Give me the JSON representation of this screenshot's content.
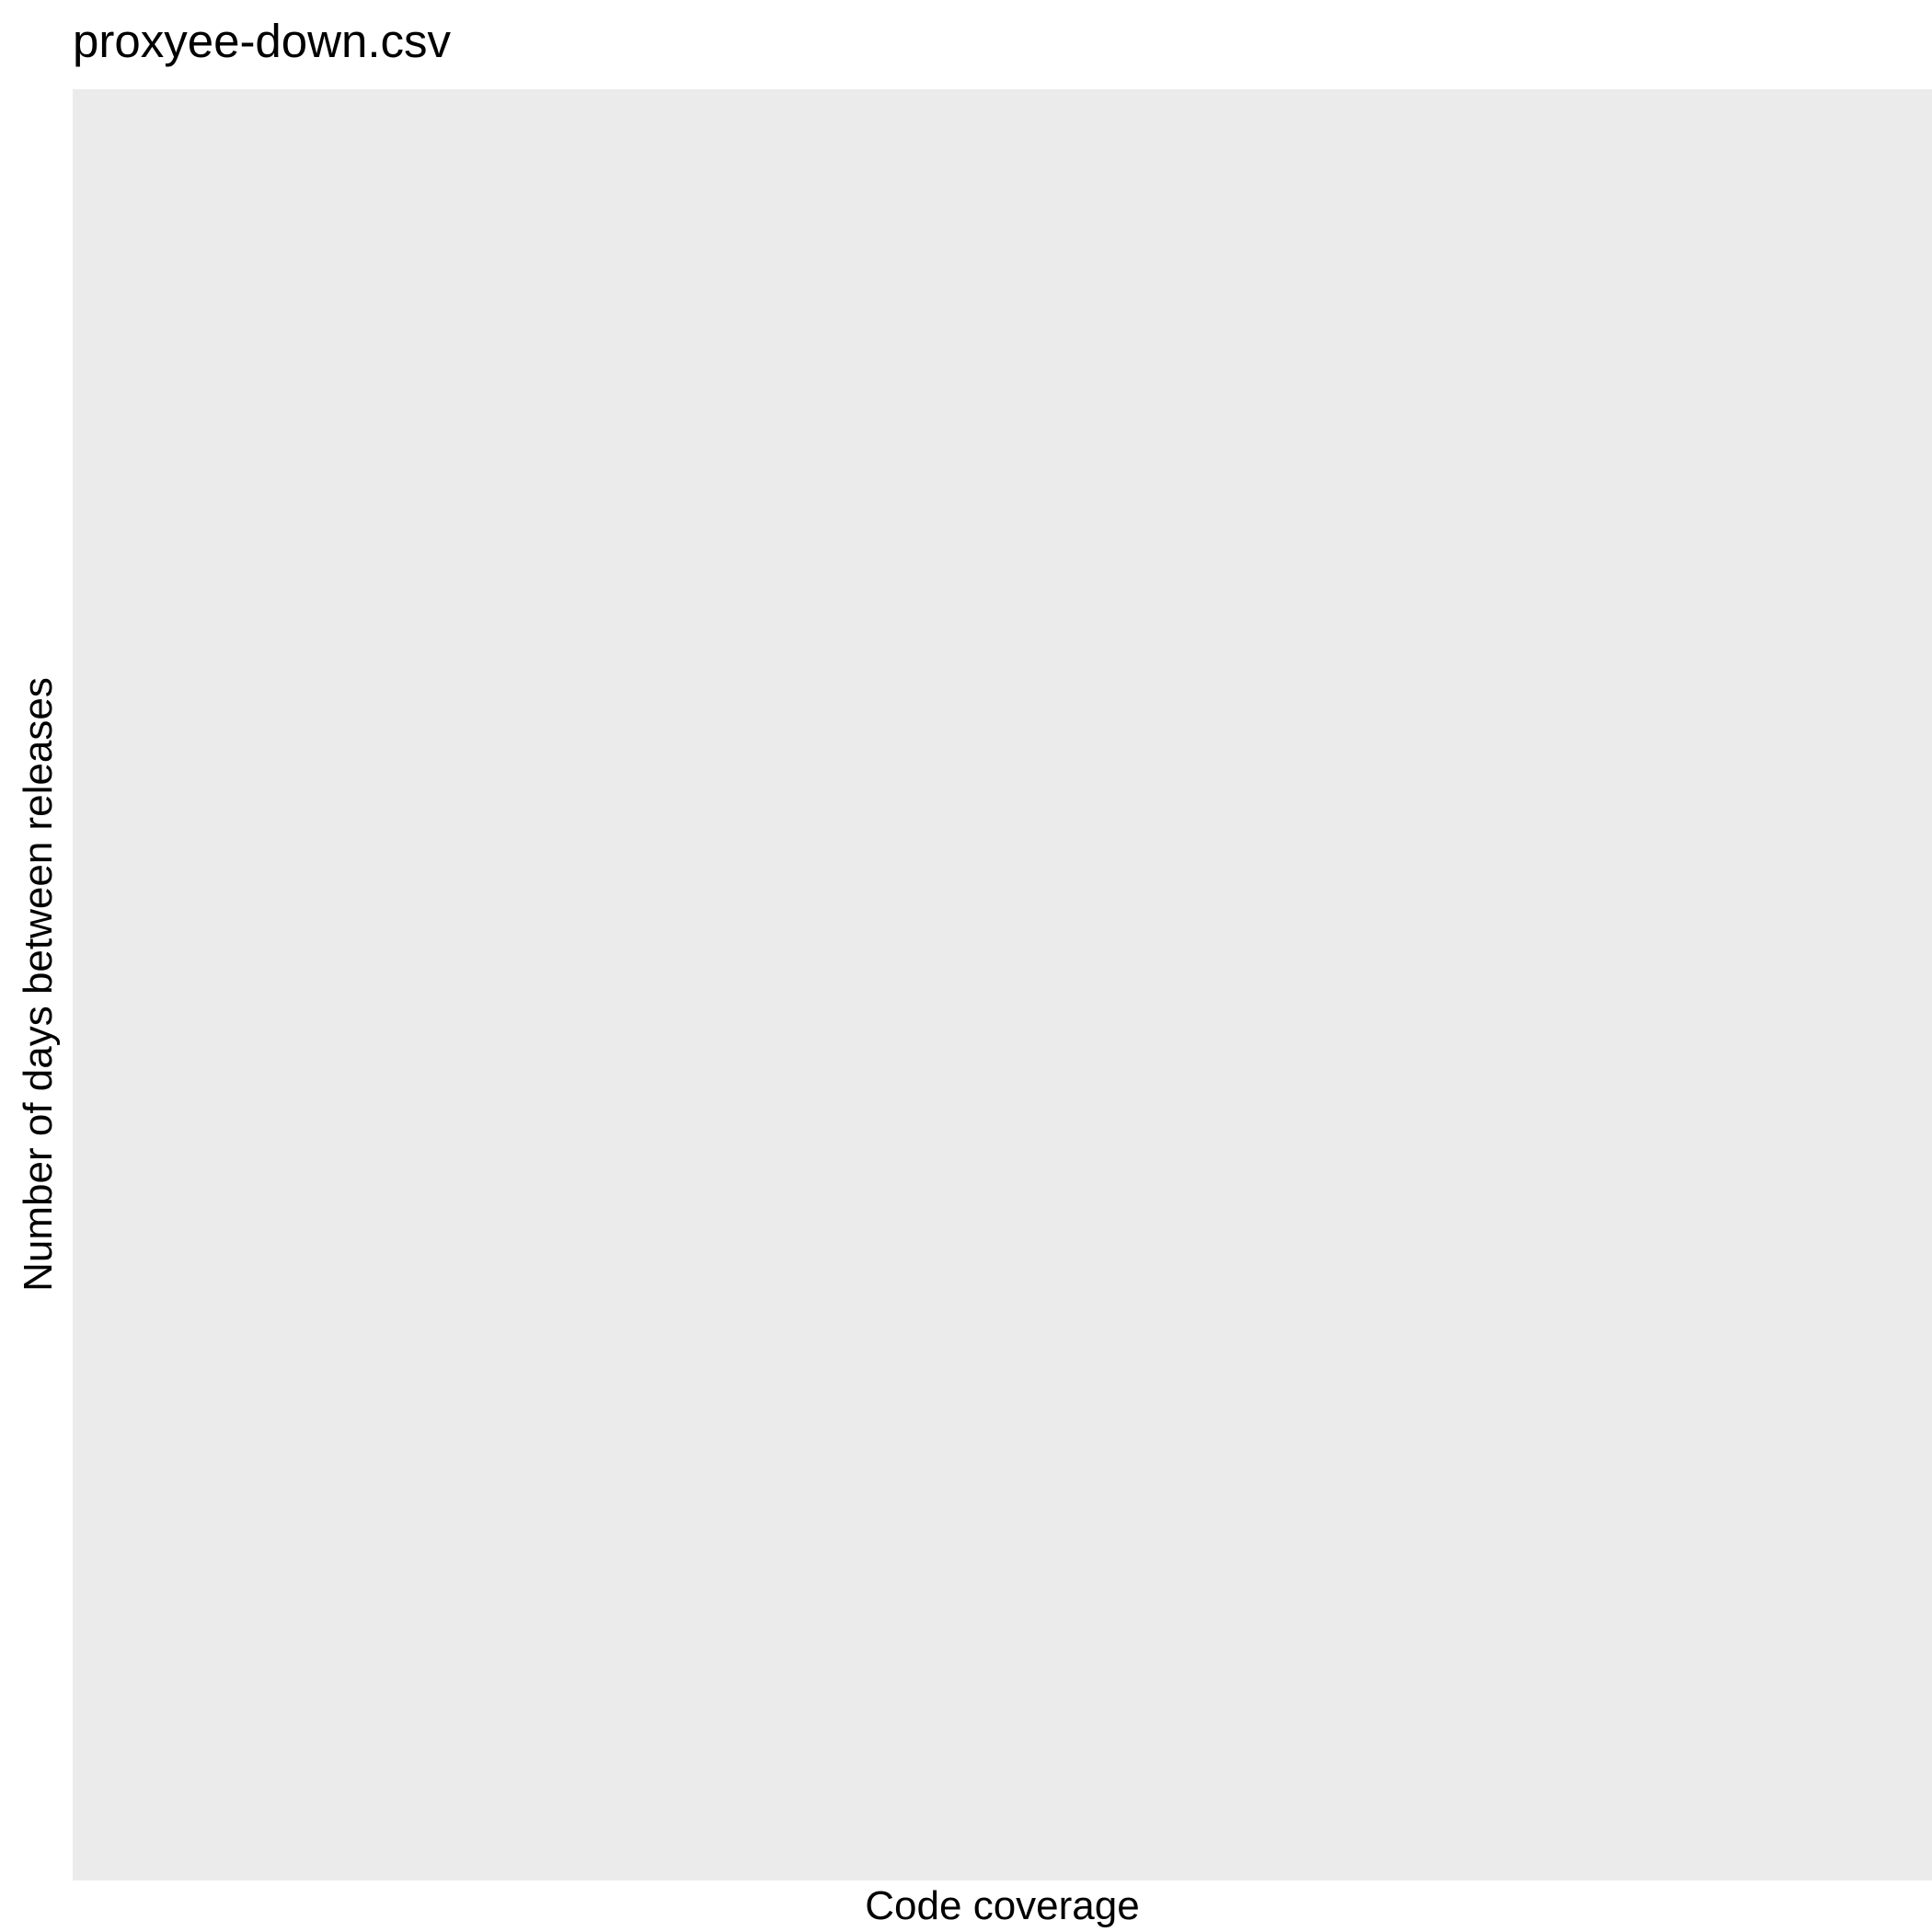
{
  "chart_data": {
    "type": "scatter",
    "title": "proxyee-down.csv",
    "xlabel": "Code coverage",
    "ylabel": "Number of days between releases",
    "series": [],
    "grid": false,
    "legend": "none",
    "panel_background": "#ebebeb"
  }
}
